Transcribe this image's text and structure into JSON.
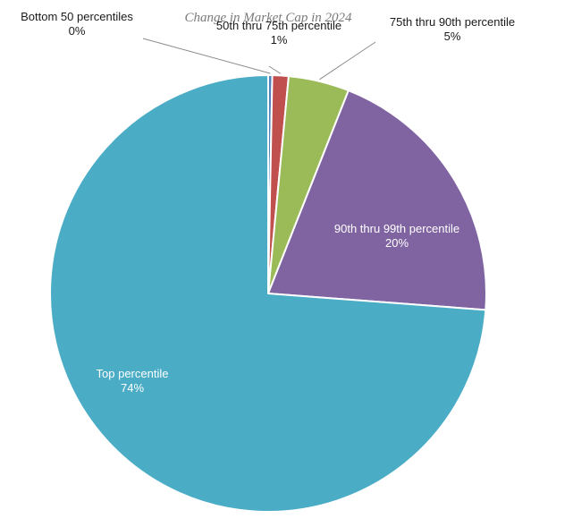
{
  "chart_data": {
    "type": "pie",
    "title": "Change in Market Cap in 2024",
    "slices": [
      {
        "label": "Bottom 50 percentiles",
        "value": 0.3,
        "display": "0%",
        "color": "#4F81BD"
      },
      {
        "label": "50th thru 75th percentile",
        "value": 1.2,
        "display": "1%",
        "color": "#C0504D"
      },
      {
        "label": "75th thru 90th percentile",
        "value": 4.5,
        "display": "5%",
        "color": "#9BBB59"
      },
      {
        "label": "90th thru 99th percentile",
        "value": 20.2,
        "display": "20%",
        "color": "#8064A2"
      },
      {
        "label": "Top percentile",
        "value": 73.8,
        "display": "74%",
        "color": "#4BACC6"
      }
    ]
  }
}
